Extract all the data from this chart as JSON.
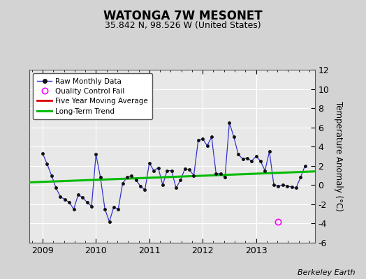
{
  "title": "WATONGA 7W MESONET",
  "subtitle": "35.842 N, 98.526 W (United States)",
  "ylabel": "Temperature Anomaly (°C)",
  "credit": "Berkeley Earth",
  "xlim": [
    2008.75,
    2014.1
  ],
  "ylim": [
    -6,
    12
  ],
  "yticks": [
    -6,
    -4,
    -2,
    0,
    2,
    4,
    6,
    8,
    10,
    12
  ],
  "bg_color": "#d3d3d3",
  "plot_bg_color": "#e8e8e8",
  "grid_color": "#ffffff",
  "raw_color": "#3333cc",
  "raw_marker_color": "#111111",
  "trend_color": "#00bb00",
  "mavg_color": "#dd0000",
  "qc_color": "#ff00ff",
  "raw_data_x": [
    2009.0,
    2009.083,
    2009.167,
    2009.25,
    2009.333,
    2009.417,
    2009.5,
    2009.583,
    2009.667,
    2009.75,
    2009.833,
    2009.917,
    2010.0,
    2010.083,
    2010.167,
    2010.25,
    2010.333,
    2010.417,
    2010.5,
    2010.583,
    2010.667,
    2010.75,
    2010.833,
    2010.917,
    2011.0,
    2011.083,
    2011.167,
    2011.25,
    2011.333,
    2011.417,
    2011.5,
    2011.583,
    2011.667,
    2011.75,
    2011.833,
    2011.917,
    2012.0,
    2012.083,
    2012.167,
    2012.25,
    2012.333,
    2012.417,
    2012.5,
    2012.583,
    2012.667,
    2012.75,
    2012.833,
    2012.917,
    2013.0,
    2013.083,
    2013.167,
    2013.25,
    2013.333,
    2013.417,
    2013.5,
    2013.583,
    2013.667,
    2013.75,
    2013.833,
    2013.917
  ],
  "raw_data_y": [
    3.3,
    2.2,
    1.0,
    -0.3,
    -1.2,
    -1.5,
    -1.8,
    -2.5,
    -1.0,
    -1.3,
    -1.8,
    -2.2,
    3.2,
    0.8,
    -2.5,
    -3.8,
    -2.3,
    -2.5,
    0.2,
    0.8,
    1.0,
    0.5,
    -0.1,
    -0.5,
    2.3,
    1.5,
    1.8,
    0.0,
    1.5,
    1.5,
    -0.3,
    0.5,
    1.7,
    1.6,
    1.0,
    4.7,
    4.8,
    4.1,
    5.0,
    1.2,
    1.2,
    0.8,
    6.5,
    5.0,
    3.2,
    2.7,
    2.8,
    2.5,
    3.0,
    2.5,
    1.5,
    3.5,
    0.0,
    -0.1,
    0.0,
    -0.1,
    -0.2,
    -0.3,
    0.8,
    2.0
  ],
  "qc_fail_x": [
    2013.417
  ],
  "qc_fail_y": [
    -3.8
  ],
  "trend_x": [
    2008.75,
    2014.1
  ],
  "trend_y": [
    0.28,
    1.42
  ],
  "xticks": [
    2009,
    2010,
    2011,
    2012,
    2013
  ],
  "xtick_labels": [
    "2009",
    "2010",
    "2011",
    "2012",
    "2013"
  ],
  "title_fontsize": 12,
  "subtitle_fontsize": 9,
  "tick_fontsize": 9,
  "ylabel_fontsize": 8.5,
  "legend_fontsize": 7.5,
  "credit_fontsize": 8
}
